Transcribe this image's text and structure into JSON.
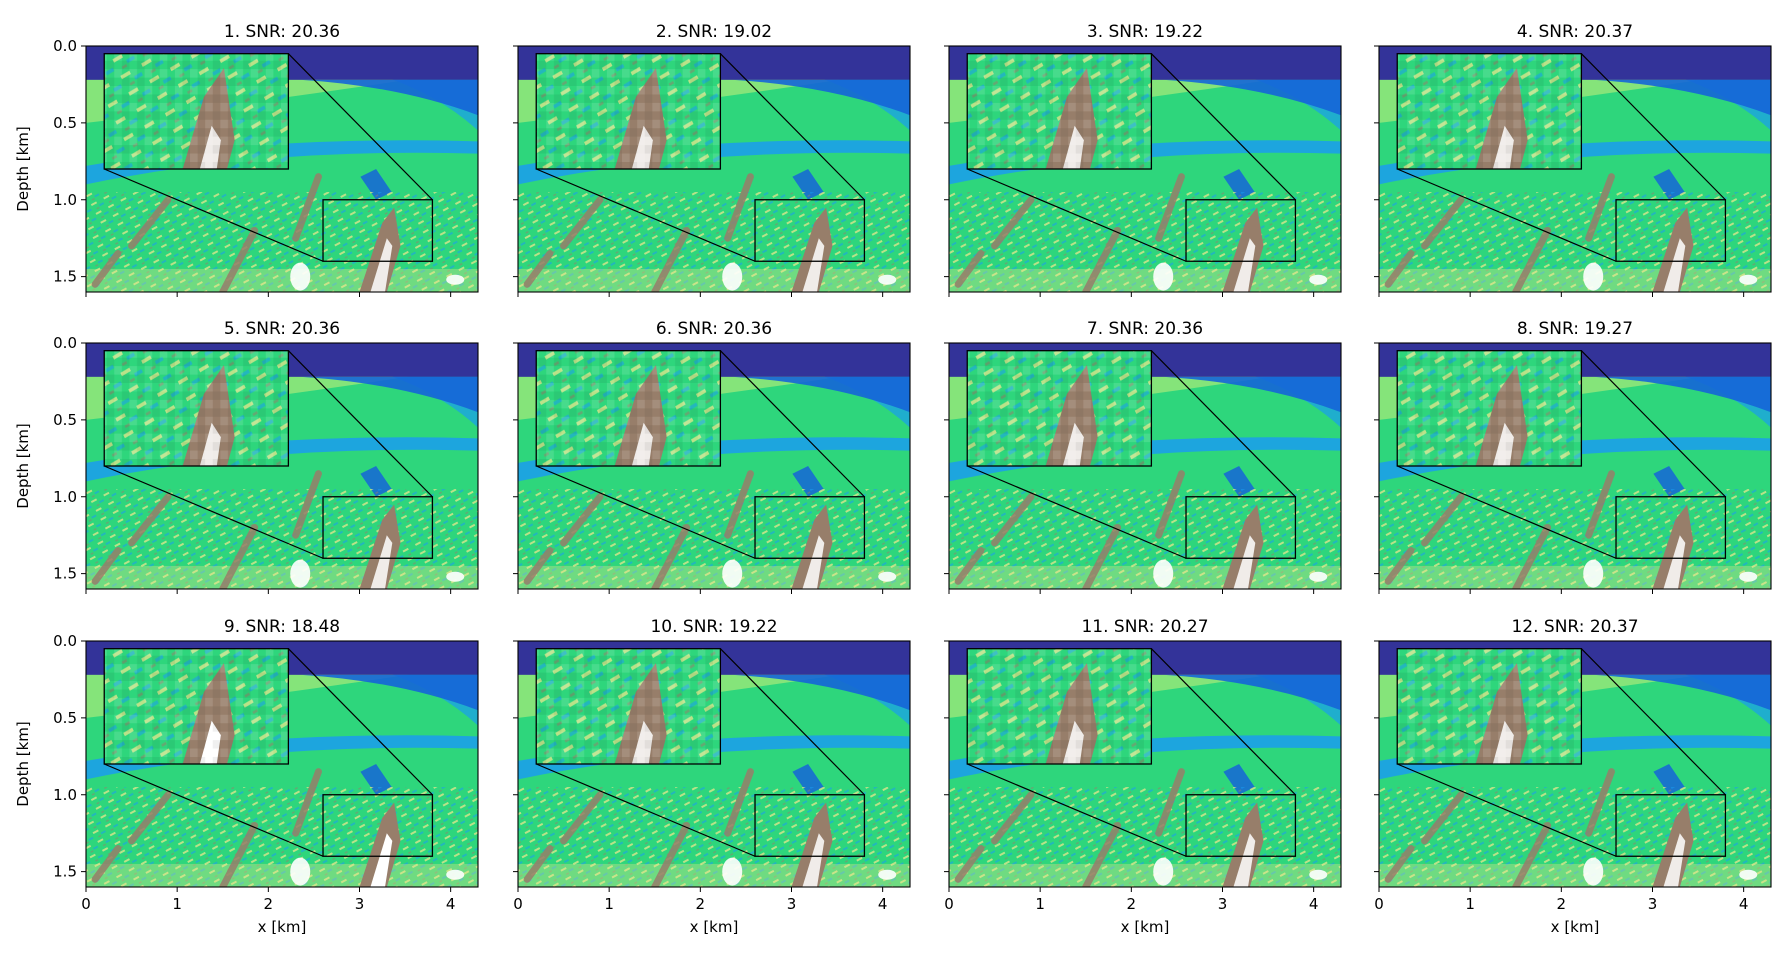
{
  "figure": {
    "xlabel": "x [km]",
    "ylabel": "Depth [km]"
  },
  "chart_data": [
    {
      "type": "heatmap",
      "title": "1. SNR: 20.36",
      "snr": 20.36
    },
    {
      "type": "heatmap",
      "title": "2. SNR: 19.02",
      "snr": 19.02
    },
    {
      "type": "heatmap",
      "title": "3. SNR: 19.22",
      "snr": 19.22
    },
    {
      "type": "heatmap",
      "title": "4. SNR: 20.37",
      "snr": 20.37
    },
    {
      "type": "heatmap",
      "title": "5. SNR: 20.36",
      "snr": 20.36
    },
    {
      "type": "heatmap",
      "title": "6. SNR: 20.36",
      "snr": 20.36
    },
    {
      "type": "heatmap",
      "title": "7. SNR: 20.36",
      "snr": 20.36
    },
    {
      "type": "heatmap",
      "title": "8. SNR: 19.27",
      "snr": 19.27
    },
    {
      "type": "heatmap",
      "title": "9. SNR: 18.48",
      "snr": 18.48
    },
    {
      "type": "heatmap",
      "title": "10. SNR: 19.22",
      "snr": 19.22
    },
    {
      "type": "heatmap",
      "title": "11. SNR: 20.27",
      "snr": 20.27
    },
    {
      "type": "heatmap",
      "title": "12. SNR: 20.37",
      "snr": 20.37
    }
  ],
  "axes": {
    "xlim": [
      0,
      4.3
    ],
    "ylim": [
      1.6,
      0.0
    ],
    "xticks": [
      0,
      1,
      2,
      3,
      4
    ],
    "xtick_labels": [
      "0",
      "1",
      "2",
      "3",
      "4"
    ],
    "yticks": [
      0.0,
      0.5,
      1.0,
      1.5
    ],
    "ytick_labels": [
      "0.0",
      "0.5",
      "1.0",
      "1.5"
    ],
    "zoom_region": {
      "x": [
        2.6,
        3.8
      ],
      "depth": [
        1.0,
        1.4
      ]
    },
    "inset_region": {
      "x": [
        0.2,
        2.22
      ],
      "depth": [
        0.05,
        0.8
      ]
    },
    "colormap": "terrain",
    "shared_x_labels_bottom_row_only": true,
    "shared_y_labels_left_column_only": true
  },
  "colors": {
    "water": "#333399",
    "deep_blue": "#1565d8",
    "cyan": "#1a9cf0",
    "green": "#2ed67c",
    "light_green": "#8fe57a",
    "yellow": "#e8e58c",
    "brown": "#977e6a",
    "white": "#ffffff"
  }
}
